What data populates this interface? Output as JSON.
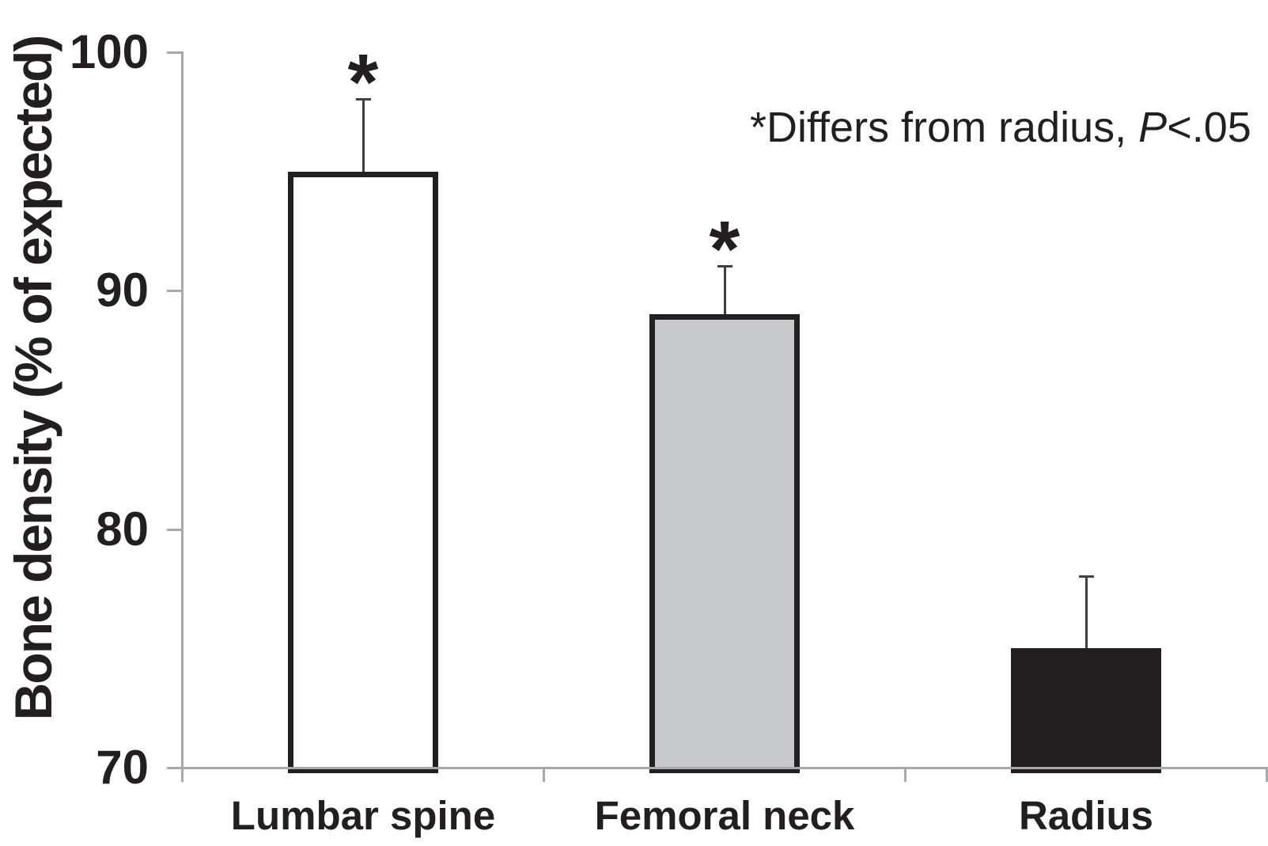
{
  "figure": {
    "ylabel": "Bone density (% of expected)",
    "annotation": {
      "prefix": "*Differs from radius, ",
      "p_italic": "P",
      "suffix": "<.05"
    }
  },
  "chart_data": {
    "type": "bar",
    "title": "",
    "xlabel": "",
    "ylabel": "Bone density (% of expected)",
    "categories": [
      "Lumbar spine",
      "Femoral neck",
      "Radius"
    ],
    "values": [
      95,
      89,
      75
    ],
    "error_upper": [
      3,
      2,
      3
    ],
    "significance": [
      true,
      true,
      false
    ],
    "significance_marker": "*",
    "annotation_text": "*Differs from radius, P<.05",
    "ylim": [
      70,
      100
    ],
    "yticks": [
      "70",
      "80",
      "90",
      "100"
    ],
    "ytick_values": [
      70,
      80,
      90,
      100
    ],
    "grid": false,
    "legend": false,
    "colors": {
      "bar_fills": [
        "#ffffff",
        "#c8c9cb",
        "#231f20"
      ],
      "bar_border": "#231f20",
      "axis": "#a7a9ac",
      "error_bar": "#3f3f41",
      "text": "#231f20"
    }
  }
}
